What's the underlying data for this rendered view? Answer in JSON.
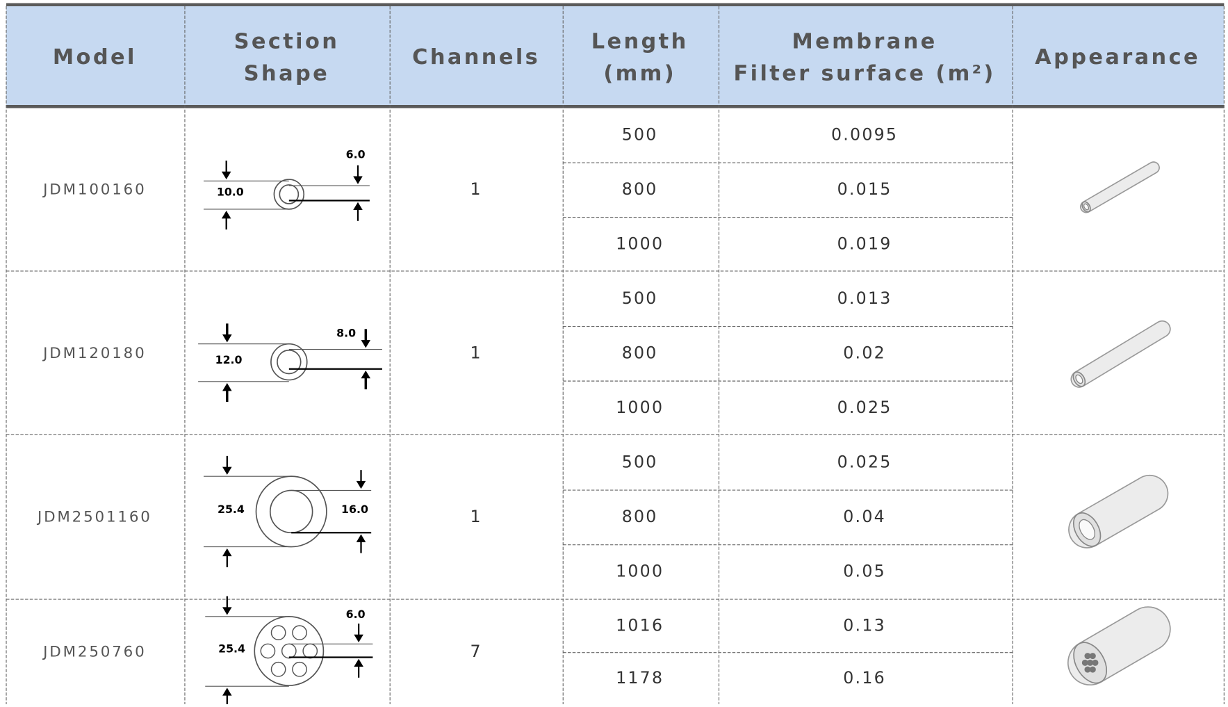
{
  "table": {
    "header": [
      [
        "Model"
      ],
      [
        "Section",
        "Shape"
      ],
      [
        "Channels"
      ],
      [
        "Length",
        "(mm)"
      ],
      [
        "Membrane",
        "Filter surface (m²)"
      ],
      [
        "Appearance"
      ]
    ],
    "rows": [
      {
        "model": "JDM100160",
        "shape_labels": [
          "6.0",
          "10.0"
        ],
        "channels": "1",
        "items": [
          {
            "length": "500",
            "area": "0.0095"
          },
          {
            "length": "800",
            "area": "0.015"
          },
          {
            "length": "1000",
            "area": "0.019"
          }
        ]
      },
      {
        "model": "JDM120180",
        "shape_labels": [
          "8.0",
          "12.0"
        ],
        "channels": "1",
        "items": [
          {
            "length": "500",
            "area": "0.013"
          },
          {
            "length": "800",
            "area": "0.02"
          },
          {
            "length": "1000",
            "area": "0.025"
          }
        ]
      },
      {
        "model": "JDM2501160",
        "shape_labels": [
          "16.0",
          "25.4"
        ],
        "channels": "1",
        "items": [
          {
            "length": "500",
            "area": "0.025"
          },
          {
            "length": "800",
            "area": "0.04"
          },
          {
            "length": "1000",
            "area": "0.05"
          }
        ]
      },
      {
        "model": "JDM250760",
        "shape_labels": [
          "6.0",
          "25.4"
        ],
        "channels": "7",
        "items": [
          {
            "length": "1016",
            "area": "0.13"
          },
          {
            "length": "1178",
            "area": "0.16"
          }
        ]
      }
    ]
  }
}
